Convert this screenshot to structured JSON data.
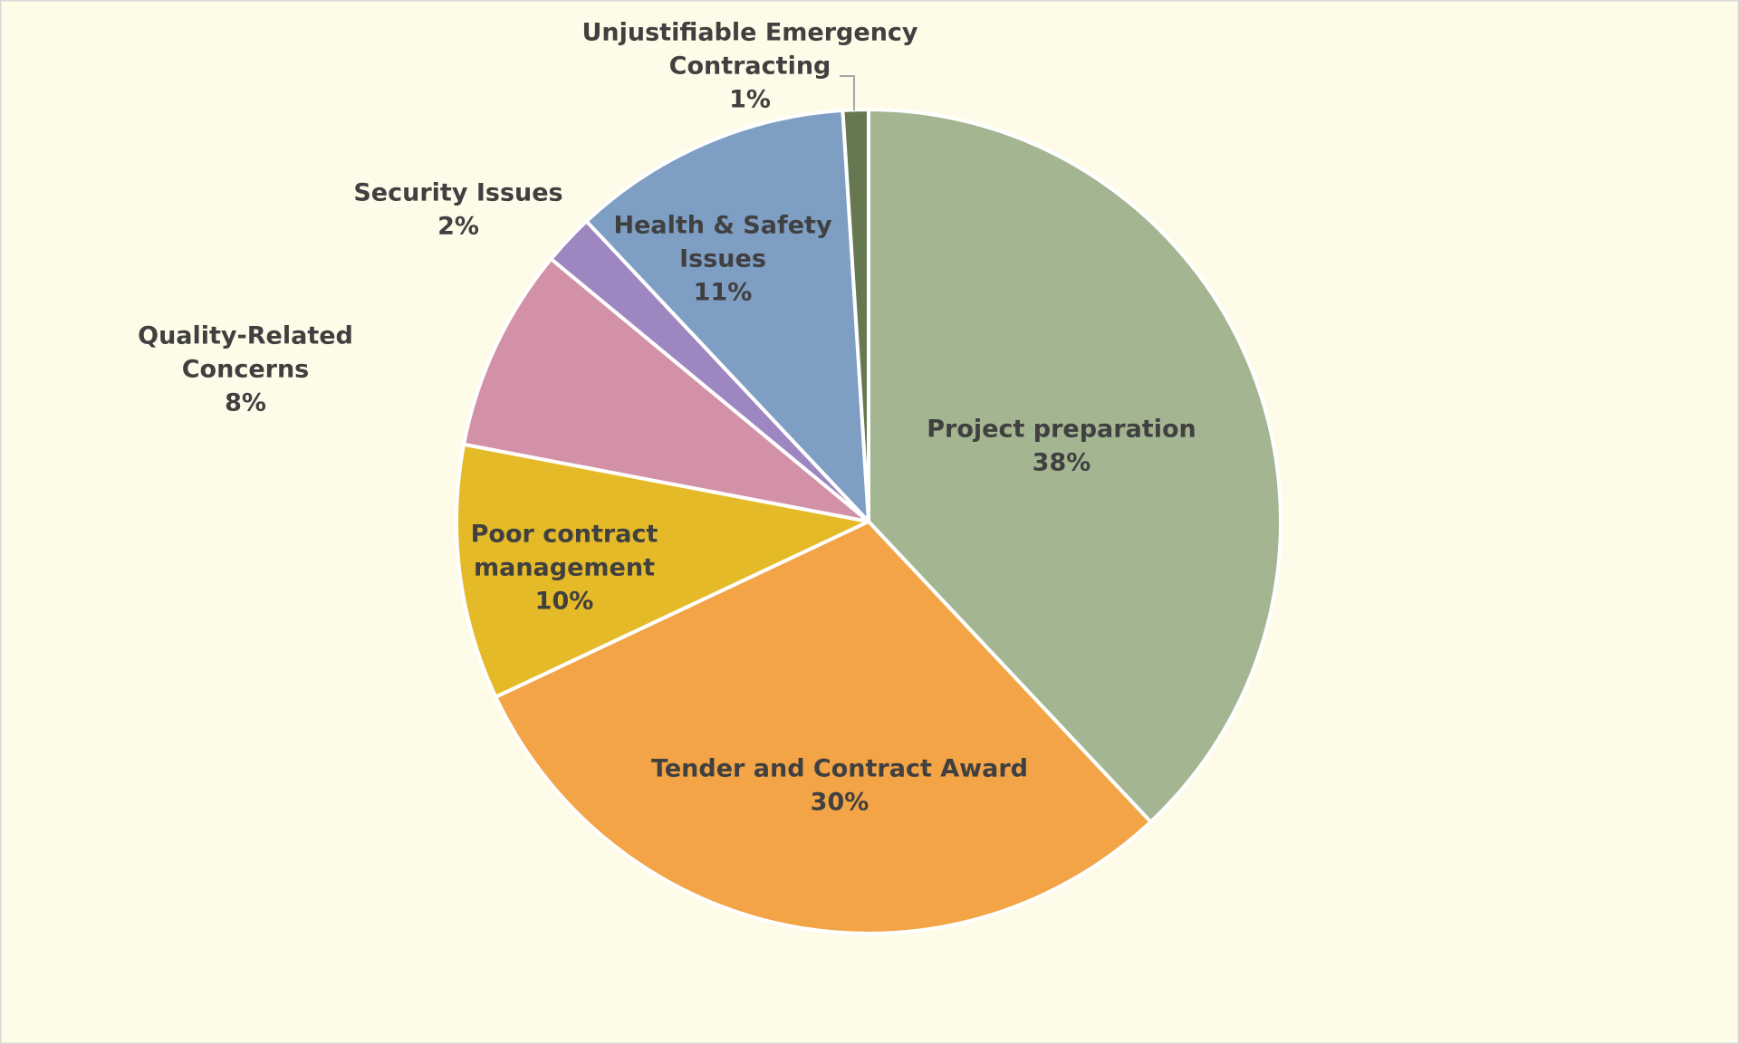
{
  "colors": {
    "background": "#FEFBE8",
    "border": "#D9D9D9",
    "text": "#404040",
    "slice_border": "#FFFFFF"
  },
  "chart_data": {
    "type": "pie",
    "title": "",
    "start": "top, clockwise",
    "slices": [
      {
        "label": "Project preparation",
        "value": 38,
        "display": "38%",
        "color": "#A4B592",
        "label_lines": [
          "Project preparation",
          "38%"
        ]
      },
      {
        "label": "Tender and Contract Award",
        "value": 30,
        "display": "30%",
        "color": "#F2A446",
        "label_lines": [
          "Tender and Contract Award",
          "30%"
        ]
      },
      {
        "label": "Poor contract management",
        "value": 10,
        "display": "10%",
        "color": "#E5BA28",
        "label_lines": [
          "Poor contract",
          "management",
          "10%"
        ]
      },
      {
        "label": "Quality-Related Concerns",
        "value": 8,
        "display": "8%",
        "color": "#D291A6",
        "label_lines": [
          "Quality-Related",
          "Concerns",
          "8%"
        ]
      },
      {
        "label": "Security Issues",
        "value": 2,
        "display": "2%",
        "color": "#9E86C0",
        "label_lines": [
          "Security Issues",
          "2%"
        ]
      },
      {
        "label": "Health & Safety Issues",
        "value": 11,
        "display": "11%",
        "color": "#7F9EC4",
        "label_lines": [
          "Health & Safety",
          "Issues",
          "11%"
        ]
      },
      {
        "label": "Unjustifiable Emergency Contracting",
        "value": 1,
        "display": "1%",
        "color": "#657850",
        "label_lines": [
          "Unjustifiable Emergency",
          "Contracting",
          "1%"
        ]
      }
    ]
  }
}
